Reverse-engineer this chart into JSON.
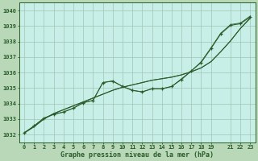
{
  "background_color": "#b8d8b8",
  "plot_bg_color": "#c8eee8",
  "grid_color": "#a0c4b0",
  "line_color": "#2a5c2a",
  "xlabel": "Graphe pression niveau de la mer (hPa)",
  "ylim": [
    1031.5,
    1040.5
  ],
  "xlim": [
    -0.5,
    23.5
  ],
  "yticks": [
    1032,
    1033,
    1034,
    1035,
    1036,
    1037,
    1038,
    1039,
    1040
  ],
  "xticks": [
    0,
    1,
    2,
    3,
    4,
    5,
    6,
    7,
    8,
    9,
    10,
    11,
    12,
    13,
    14,
    15,
    16,
    17,
    18,
    19,
    21,
    22,
    23
  ],
  "xtick_labels": [
    "0",
    "1",
    "2",
    "3",
    "4",
    "5",
    "6",
    "7",
    "8",
    "9",
    "10",
    "11",
    "12",
    "13",
    "14",
    "15",
    "16",
    "17",
    "18",
    "19",
    "21",
    "22",
    "23"
  ],
  "smooth_line": [
    1032.1,
    1032.5,
    1033.0,
    1033.35,
    1033.6,
    1033.85,
    1034.1,
    1034.35,
    1034.6,
    1034.85,
    1035.05,
    1035.2,
    1035.35,
    1035.5,
    1035.6,
    1035.7,
    1035.85,
    1036.05,
    1036.3,
    1036.7,
    1037.35,
    1038.05,
    1038.85,
    1039.5
  ],
  "smooth_line2": [
    1032.1,
    1032.5,
    1033.0,
    1033.35,
    1033.6,
    1033.85,
    1034.1,
    1034.35,
    1034.6,
    1034.85,
    1035.05,
    1035.2,
    1035.35,
    1035.5,
    1035.6,
    1035.7,
    1035.85,
    1036.05,
    1036.3,
    1036.7,
    1037.35,
    1038.05,
    1038.85,
    1039.55
  ],
  "jagged_line": [
    1032.1,
    1032.55,
    1033.05,
    1033.3,
    1033.45,
    1033.7,
    1034.05,
    1034.2,
    1035.35,
    1035.45,
    1035.1,
    1034.85,
    1034.75,
    1034.95,
    1034.95,
    1035.1,
    1035.55,
    1036.1,
    1036.65,
    1037.55,
    1038.5,
    1039.05,
    1039.15,
    1039.6
  ],
  "jagged_line2": [
    1032.1,
    1032.55,
    1033.05,
    1033.3,
    1033.45,
    1033.7,
    1034.05,
    1034.2,
    1035.35,
    1035.45,
    1035.1,
    1034.85,
    1034.75,
    1034.95,
    1034.95,
    1035.1,
    1035.6,
    1036.1,
    1036.7,
    1037.6,
    1038.55,
    1039.1,
    1039.2,
    1039.65
  ]
}
